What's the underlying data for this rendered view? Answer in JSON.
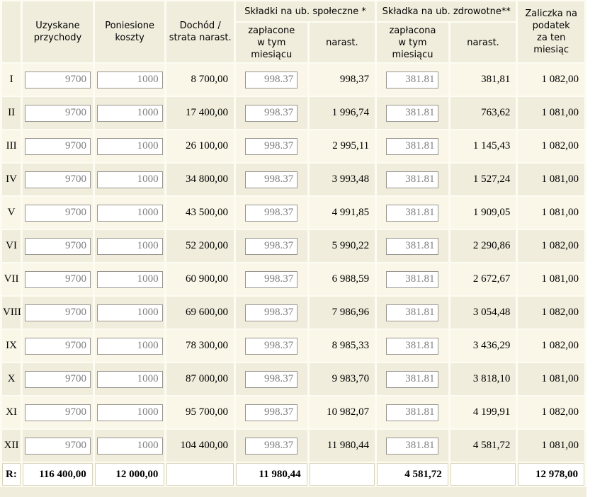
{
  "colors": {
    "header_bg": "#f1eddc",
    "row_odd": "#faf7e8",
    "row_even": "#f1eddc",
    "gap": "#fdfcf2",
    "input_border": "#999590",
    "input_text": "#7e7e7e",
    "summary_border": "#d8d3ba"
  },
  "table": {
    "headers": {
      "corner": "",
      "przychody": "Uzyskane\nprzychody",
      "koszty": "Poniesione\nkoszty",
      "dochod": "Dochód /\nstrata narast.",
      "spoleczne_group": "Składki na ub. społeczne *",
      "spoleczne_paid": "zapłacone\nw tym miesiącu",
      "spoleczne_cum": "narast.",
      "zdrowotne_group": "Składka na ub. zdrowotne**",
      "zdrowotne_paid": "zapłacona\nw tym miesiącu",
      "zdrowotne_cum": "narast.",
      "zaliczka": "Zaliczka na\npodatek\nza ten miesiąc"
    },
    "rows": [
      {
        "month": "I",
        "przychody": "9700",
        "koszty": "1000",
        "dochod": "8 700,00",
        "spoleczne_paid": "998.37",
        "spoleczne_cum": "998,37",
        "zdrowotne_paid": "381.81",
        "zdrowotne_cum": "381,81",
        "zaliczka": "1 082,00"
      },
      {
        "month": "II",
        "przychody": "9700",
        "koszty": "1000",
        "dochod": "17 400,00",
        "spoleczne_paid": "998.37",
        "spoleczne_cum": "1 996,74",
        "zdrowotne_paid": "381.81",
        "zdrowotne_cum": "763,62",
        "zaliczka": "1 081,00"
      },
      {
        "month": "III",
        "przychody": "9700",
        "koszty": "1000",
        "dochod": "26 100,00",
        "spoleczne_paid": "998.37",
        "spoleczne_cum": "2 995,11",
        "zdrowotne_paid": "381.81",
        "zdrowotne_cum": "1 145,43",
        "zaliczka": "1 082,00"
      },
      {
        "month": "IV",
        "przychody": "9700",
        "koszty": "1000",
        "dochod": "34 800,00",
        "spoleczne_paid": "998.37",
        "spoleczne_cum": "3 993,48",
        "zdrowotne_paid": "381.81",
        "zdrowotne_cum": "1 527,24",
        "zaliczka": "1 081,00"
      },
      {
        "month": "V",
        "przychody": "9700",
        "koszty": "1000",
        "dochod": "43 500,00",
        "spoleczne_paid": "998.37",
        "spoleczne_cum": "4 991,85",
        "zdrowotne_paid": "381.81",
        "zdrowotne_cum": "1 909,05",
        "zaliczka": "1 081,00"
      },
      {
        "month": "VI",
        "przychody": "9700",
        "koszty": "1000",
        "dochod": "52 200,00",
        "spoleczne_paid": "998.37",
        "spoleczne_cum": "5 990,22",
        "zdrowotne_paid": "381.81",
        "zdrowotne_cum": "2 290,86",
        "zaliczka": "1 082,00"
      },
      {
        "month": "VII",
        "przychody": "9700",
        "koszty": "1000",
        "dochod": "60 900,00",
        "spoleczne_paid": "998.37",
        "spoleczne_cum": "6 988,59",
        "zdrowotne_paid": "381.81",
        "zdrowotne_cum": "2 672,67",
        "zaliczka": "1 081,00"
      },
      {
        "month": "VIII",
        "przychody": "9700",
        "koszty": "1000",
        "dochod": "69 600,00",
        "spoleczne_paid": "998.37",
        "spoleczne_cum": "7 986,96",
        "zdrowotne_paid": "381.81",
        "zdrowotne_cum": "3 054,48",
        "zaliczka": "1 082,00"
      },
      {
        "month": "IX",
        "przychody": "9700",
        "koszty": "1000",
        "dochod": "78 300,00",
        "spoleczne_paid": "998.37",
        "spoleczne_cum": "8 985,33",
        "zdrowotne_paid": "381.81",
        "zdrowotne_cum": "3 436,29",
        "zaliczka": "1 082,00"
      },
      {
        "month": "X",
        "przychody": "9700",
        "koszty": "1000",
        "dochod": "87 000,00",
        "spoleczne_paid": "998.37",
        "spoleczne_cum": "9 983,70",
        "zdrowotne_paid": "381.81",
        "zdrowotne_cum": "3 818,10",
        "zaliczka": "1 081,00"
      },
      {
        "month": "XI",
        "przychody": "9700",
        "koszty": "1000",
        "dochod": "95 700,00",
        "spoleczne_paid": "998.37",
        "spoleczne_cum": "10 982,07",
        "zdrowotne_paid": "381.81",
        "zdrowotne_cum": "4 199,91",
        "zaliczka": "1 082,00"
      },
      {
        "month": "XII",
        "przychody": "9700",
        "koszty": "1000",
        "dochod": "104 400,00",
        "spoleczne_paid": "998.37",
        "spoleczne_cum": "11 980,44",
        "zdrowotne_paid": "381.81",
        "zdrowotne_cum": "4 581,72",
        "zaliczka": "1 081,00"
      }
    ],
    "summary": {
      "label": "R:",
      "przychody": "116 400,00",
      "koszty": "12 000,00",
      "dochod": "",
      "spoleczne_paid": "11 980,44",
      "spoleczne_cum": "",
      "zdrowotne_paid": "4 581,72",
      "zdrowotne_cum": "",
      "zaliczka": "12 978,00"
    }
  }
}
